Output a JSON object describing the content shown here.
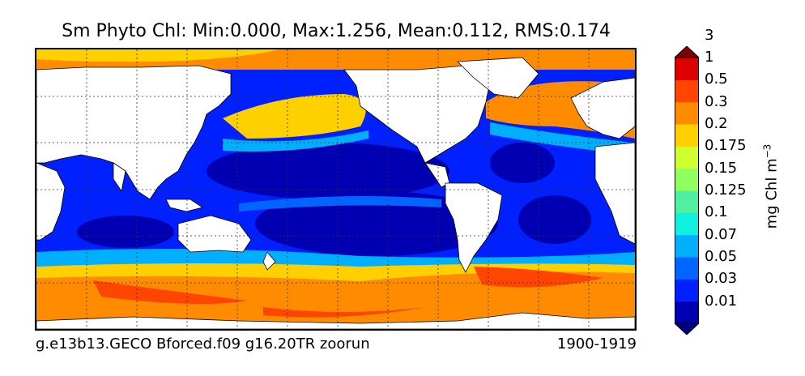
{
  "title": "Sm Phyto Chl: Min:0.000, Max:1.256, Mean:0.112, RMS:0.174",
  "caption_left": "g.e13b13.GECO Bforced.f09 g16.20TR zoorun",
  "caption_right": "1900-1919",
  "colorbar": {
    "units_text": "mg Chl m",
    "units_exponent": "−3",
    "ticks": [
      "0.01",
      "0.03",
      "0.05",
      "0.07",
      "0.1",
      "0.125",
      "0.15",
      "0.175",
      "0.2",
      "0.3",
      "0.5",
      "1",
      "3"
    ],
    "colors": [
      "#00007f",
      "#0000b2",
      "#0020ff",
      "#0066ff",
      "#00b0ff",
      "#10f0e0",
      "#50f0a0",
      "#90ff60",
      "#d0ff30",
      "#ffd000",
      "#ff8c00",
      "#ff4500",
      "#dd0000",
      "#7f0000"
    ]
  },
  "map": {
    "land_color": "#ffffff",
    "ocean_base_color": "#0000b2",
    "grid_style": "dotted",
    "regions": [
      {
        "name": "southern-ocean-band",
        "color": "#ff8c00"
      },
      {
        "name": "southern-ocean-high",
        "color": "#ff4500"
      },
      {
        "name": "subantarctic-front",
        "color": "#00b0ff"
      },
      {
        "name": "north-pacific-subarctic",
        "color": "#ffd000"
      },
      {
        "name": "north-atlantic-subpolar",
        "color": "#ff8c00"
      },
      {
        "name": "arctic-ocean",
        "color": "#ff8c00"
      },
      {
        "name": "subtropical-gyre",
        "color": "#0020ff"
      },
      {
        "name": "equatorial-upwelling",
        "color": "#0066ff"
      }
    ]
  }
}
